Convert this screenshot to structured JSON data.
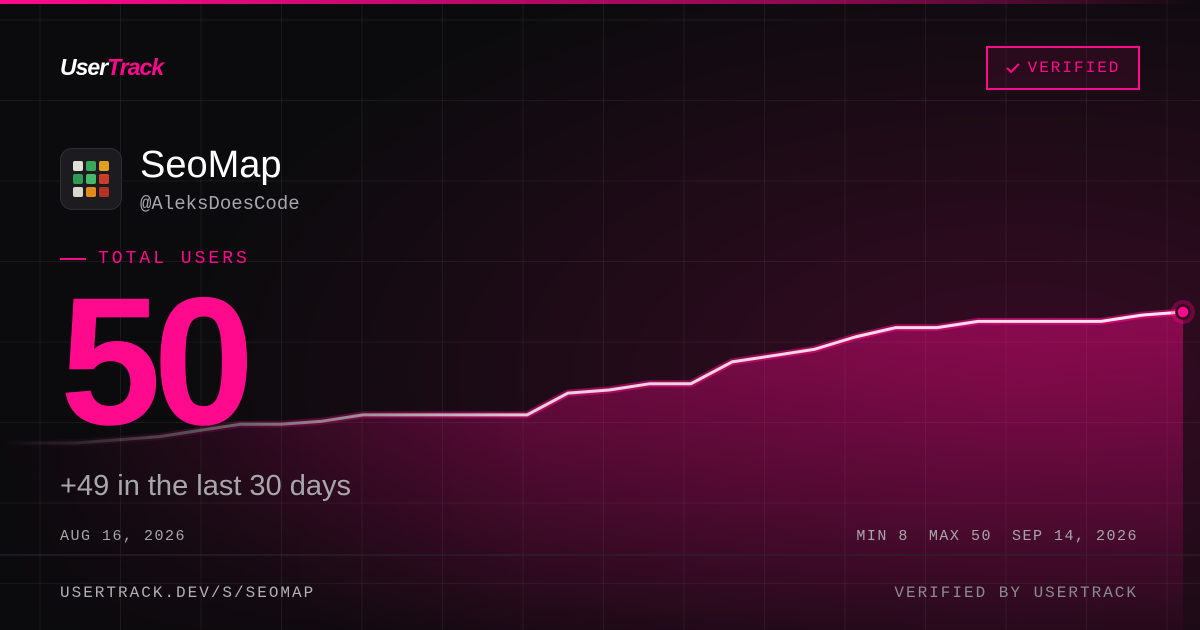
{
  "brand": {
    "part1": "User",
    "part2": "Track"
  },
  "badge": "VERIFIED",
  "app": {
    "name": "SeoMap",
    "handle": "@AleksDoesCode"
  },
  "metric": {
    "label": "TOTAL USERS",
    "value": 50,
    "delta": "+49 in the last 30 days"
  },
  "range": {
    "start": "AUG 16, 2026",
    "end": "SEP 14, 2026"
  },
  "stats": [
    {
      "label": "MIN",
      "value": 8
    },
    {
      "label": "MAX",
      "value": 50
    }
  ],
  "footer": {
    "url": "USERTRACK.DEV/S/SEOMAP",
    "verified": "VERIFIED BY USERTRACK"
  },
  "chart_data": {
    "type": "line",
    "color": "#ff0a8c",
    "values": [
      8,
      8,
      8,
      9,
      10,
      12,
      14,
      14,
      15,
      17,
      17,
      17,
      17,
      17,
      24,
      25,
      27,
      27,
      34,
      36,
      38,
      42,
      45,
      45,
      47,
      47,
      47,
      47,
      49,
      50
    ],
    "ylim": [
      8,
      50
    ]
  }
}
